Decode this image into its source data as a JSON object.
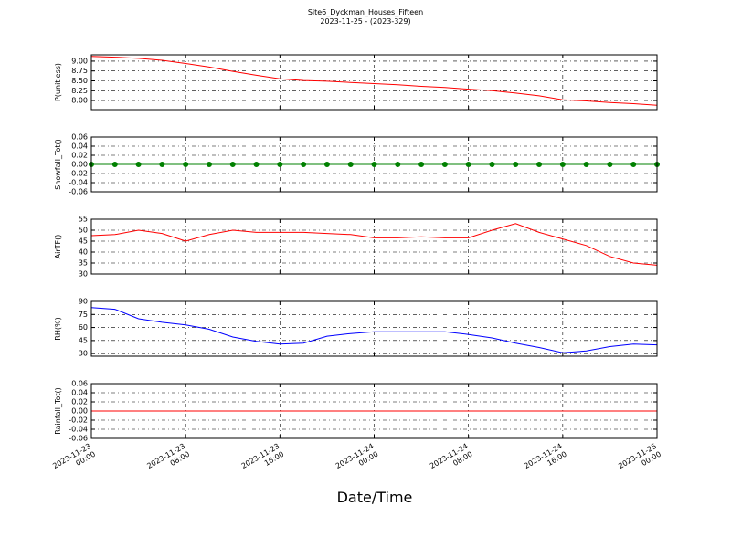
{
  "title": "Site6_Dyckman_Houses_Fifteen",
  "subtitle": "2023-11-25 - (2023-329)",
  "x_label": "Date/Time",
  "chart_data": [
    {
      "type": "line",
      "y_label": "P(unitless)",
      "grid": true,
      "x": [
        "2023-11-23 00:00",
        "2023-11-23 02:00",
        "2023-11-23 04:00",
        "2023-11-23 06:00",
        "2023-11-23 08:00",
        "2023-11-23 10:00",
        "2023-11-23 12:00",
        "2023-11-23 14:00",
        "2023-11-23 16:00",
        "2023-11-23 18:00",
        "2023-11-23 20:00",
        "2023-11-23 22:00",
        "2023-11-24 00:00",
        "2023-11-24 02:00",
        "2023-11-24 04:00",
        "2023-11-24 06:00",
        "2023-11-24 08:00",
        "2023-11-24 10:00",
        "2023-11-24 12:00",
        "2023-11-24 14:00",
        "2023-11-24 16:00",
        "2023-11-24 18:00",
        "2023-11-24 20:00",
        "2023-11-24 22:00",
        "2023-11-25 00:00"
      ],
      "xlim": [
        "2023-11-23 00:00",
        "2023-11-25 00:00"
      ],
      "xticks": [
        "2023-11-23 00:00",
        "2023-11-23 08:00",
        "2023-11-23 16:00",
        "2023-11-24 00:00",
        "2023-11-24 08:00",
        "2023-11-24 16:00",
        "2023-11-25 00:00"
      ],
      "ylim": [
        7.77,
        9.16
      ],
      "yticks": [
        {
          "value": 8,
          "label": "8.00"
        },
        8.25,
        {
          "value": 8.5,
          "label": "8.50"
        },
        8.75,
        {
          "value": 9,
          "label": "9.00"
        }
      ],
      "series": [
        {
          "color": "#ff0000",
          "values": [
            9.12,
            9.1,
            9.07,
            9.02,
            8.94,
            8.85,
            8.74,
            8.64,
            8.55,
            8.51,
            8.49,
            8.46,
            8.43,
            8.4,
            8.36,
            8.33,
            8.29,
            8.25,
            8.19,
            8.12,
            8.02,
            7.99,
            7.95,
            7.92,
            7.88
          ]
        }
      ]
    },
    {
      "type": "line",
      "y_label": "Snowfall_Tot()",
      "grid": true,
      "marker": true,
      "x": [
        "2023-11-23 00:00",
        "2023-11-23 02:00",
        "2023-11-23 04:00",
        "2023-11-23 06:00",
        "2023-11-23 08:00",
        "2023-11-23 10:00",
        "2023-11-23 12:00",
        "2023-11-23 14:00",
        "2023-11-23 16:00",
        "2023-11-23 18:00",
        "2023-11-23 20:00",
        "2023-11-23 22:00",
        "2023-11-24 00:00",
        "2023-11-24 02:00",
        "2023-11-24 04:00",
        "2023-11-24 06:00",
        "2023-11-24 08:00",
        "2023-11-24 10:00",
        "2023-11-24 12:00",
        "2023-11-24 14:00",
        "2023-11-24 16:00",
        "2023-11-24 18:00",
        "2023-11-24 20:00",
        "2023-11-24 22:00",
        "2023-11-25 00:00"
      ],
      "xlim": [
        "2023-11-23 00:00",
        "2023-11-25 00:00"
      ],
      "xticks": [
        "2023-11-23 00:00",
        "2023-11-23 08:00",
        "2023-11-23 16:00",
        "2023-11-24 00:00",
        "2023-11-24 08:00",
        "2023-11-24 16:00",
        "2023-11-25 00:00"
      ],
      "ylim": [
        -0.06,
        0.06
      ],
      "yticks": [
        -0.06,
        -0.04,
        -0.02,
        {
          "value": 0,
          "label": "0.00"
        },
        0.02,
        0.04,
        0.06
      ],
      "series": [
        {
          "color": "#008000",
          "values": [
            0,
            0,
            0,
            0,
            0,
            0,
            0,
            0,
            0,
            0,
            0,
            0,
            0,
            0,
            0,
            0,
            0,
            0,
            0,
            0,
            0,
            0,
            0,
            0,
            0
          ]
        }
      ]
    },
    {
      "type": "line",
      "y_label": "AirTF()",
      "grid": true,
      "x": [
        "2023-11-23 00:00",
        "2023-11-23 02:00",
        "2023-11-23 04:00",
        "2023-11-23 06:00",
        "2023-11-23 08:00",
        "2023-11-23 10:00",
        "2023-11-23 12:00",
        "2023-11-23 14:00",
        "2023-11-23 16:00",
        "2023-11-23 18:00",
        "2023-11-23 20:00",
        "2023-11-23 22:00",
        "2023-11-24 00:00",
        "2023-11-24 02:00",
        "2023-11-24 04:00",
        "2023-11-24 06:00",
        "2023-11-24 08:00",
        "2023-11-24 10:00",
        "2023-11-24 12:00",
        "2023-11-24 14:00",
        "2023-11-24 16:00",
        "2023-11-24 18:00",
        "2023-11-24 20:00",
        "2023-11-24 22:00",
        "2023-11-25 00:00"
      ],
      "xlim": [
        "2023-11-23 00:00",
        "2023-11-25 00:00"
      ],
      "xticks": [
        "2023-11-23 00:00",
        "2023-11-23 08:00",
        "2023-11-23 16:00",
        "2023-11-24 00:00",
        "2023-11-24 08:00",
        "2023-11-24 16:00",
        "2023-11-25 00:00"
      ],
      "ylim": [
        30,
        55
      ],
      "yticks": [
        30,
        35,
        40,
        45,
        50,
        55
      ],
      "series": [
        {
          "color": "#ff0000",
          "values": [
            47.5,
            48,
            50,
            48.5,
            45,
            48,
            50,
            49,
            49,
            49,
            48.5,
            48,
            46.5,
            46.5,
            47,
            46.5,
            46.5,
            50,
            53,
            49,
            46,
            43,
            38,
            35,
            34
          ]
        }
      ]
    },
    {
      "type": "line",
      "y_label": "RH(%)",
      "grid": true,
      "x": [
        "2023-11-23 00:00",
        "2023-11-23 02:00",
        "2023-11-23 04:00",
        "2023-11-23 06:00",
        "2023-11-23 08:00",
        "2023-11-23 10:00",
        "2023-11-23 12:00",
        "2023-11-23 14:00",
        "2023-11-23 16:00",
        "2023-11-23 18:00",
        "2023-11-23 20:00",
        "2023-11-23 22:00",
        "2023-11-24 00:00",
        "2023-11-24 02:00",
        "2023-11-24 04:00",
        "2023-11-24 06:00",
        "2023-11-24 08:00",
        "2023-11-24 10:00",
        "2023-11-24 12:00",
        "2023-11-24 14:00",
        "2023-11-24 16:00",
        "2023-11-24 18:00",
        "2023-11-24 20:00",
        "2023-11-24 22:00",
        "2023-11-25 00:00"
      ],
      "xlim": [
        "2023-11-23 00:00",
        "2023-11-25 00:00"
      ],
      "xticks": [
        "2023-11-23 00:00",
        "2023-11-23 08:00",
        "2023-11-23 16:00",
        "2023-11-24 00:00",
        "2023-11-24 08:00",
        "2023-11-24 16:00",
        "2023-11-25 00:00"
      ],
      "ylim": [
        27,
        90
      ],
      "yticks": [
        30,
        45,
        60,
        75,
        90
      ],
      "series": [
        {
          "color": "#0000ff",
          "values": [
            83,
            81,
            70,
            66,
            63,
            58,
            49,
            44,
            41,
            42,
            50,
            53,
            55,
            55,
            55,
            55,
            52,
            48,
            42,
            37,
            31,
            33,
            38,
            41,
            40
          ]
        }
      ]
    },
    {
      "type": "line",
      "y_label": "Rainfall_Tot()",
      "grid": true,
      "x": [
        "2023-11-23 00:00",
        "2023-11-23 02:00",
        "2023-11-23 04:00",
        "2023-11-23 06:00",
        "2023-11-23 08:00",
        "2023-11-23 10:00",
        "2023-11-23 12:00",
        "2023-11-23 14:00",
        "2023-11-23 16:00",
        "2023-11-23 18:00",
        "2023-11-23 20:00",
        "2023-11-23 22:00",
        "2023-11-24 00:00",
        "2023-11-24 02:00",
        "2023-11-24 04:00",
        "2023-11-24 06:00",
        "2023-11-24 08:00",
        "2023-11-24 10:00",
        "2023-11-24 12:00",
        "2023-11-24 14:00",
        "2023-11-24 16:00",
        "2023-11-24 18:00",
        "2023-11-24 20:00",
        "2023-11-24 22:00",
        "2023-11-25 00:00"
      ],
      "xlim": [
        "2023-11-23 00:00",
        "2023-11-25 00:00"
      ],
      "xticks": [
        "2023-11-23 00:00",
        "2023-11-23 08:00",
        "2023-11-23 16:00",
        "2023-11-24 00:00",
        "2023-11-24 08:00",
        "2023-11-24 16:00",
        "2023-11-25 00:00"
      ],
      "ylim": [
        -0.06,
        0.06
      ],
      "yticks": [
        -0.06,
        -0.04,
        -0.02,
        {
          "value": 0,
          "label": "0.00"
        },
        0.02,
        0.04,
        0.06
      ],
      "series": [
        {
          "color": "#ff0000",
          "values": [
            0,
            0,
            0,
            0,
            0,
            0,
            0,
            0,
            0,
            0,
            0,
            0,
            0,
            0,
            0,
            0,
            0,
            0,
            0,
            0,
            0,
            0,
            0,
            0,
            0
          ]
        }
      ]
    }
  ]
}
